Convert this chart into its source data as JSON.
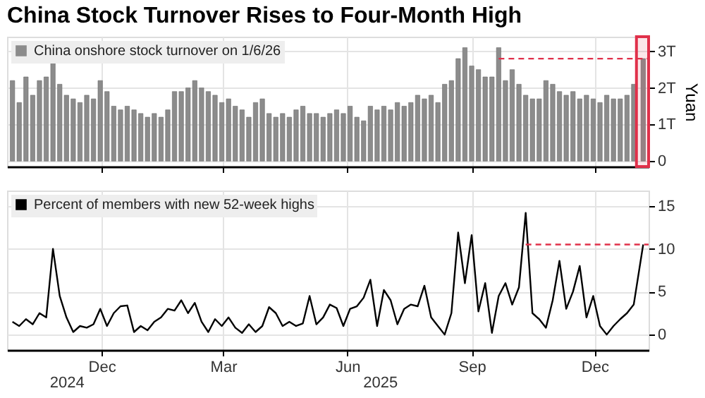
{
  "chart_data": [
    {
      "type": "bar",
      "title": "China Stock Turnover Rises to Four-Month High",
      "ylabel": "Yuan",
      "x": [
        "2024-09-26",
        "2024-10-01",
        "2024-10-06",
        "2024-10-11",
        "2024-10-16",
        "2024-10-21",
        "2024-10-26",
        "2024-10-31",
        "2024-11-05",
        "2024-11-10",
        "2024-11-15",
        "2024-11-20",
        "2024-11-25",
        "2024-11-30",
        "2024-12-05",
        "2024-12-10",
        "2024-12-15",
        "2024-12-20",
        "2024-12-25",
        "2024-12-30",
        "2025-01-04",
        "2025-01-09",
        "2025-01-14",
        "2025-01-19",
        "2025-01-24",
        "2025-01-29",
        "2025-02-03",
        "2025-02-08",
        "2025-02-13",
        "2025-02-18",
        "2025-02-23",
        "2025-02-28",
        "2025-03-05",
        "2025-03-10",
        "2025-03-15",
        "2025-03-20",
        "2025-03-25",
        "2025-03-30",
        "2025-04-04",
        "2025-04-09",
        "2025-04-14",
        "2025-04-19",
        "2025-04-24",
        "2025-04-29",
        "2025-05-04",
        "2025-05-09",
        "2025-05-14",
        "2025-05-19",
        "2025-05-24",
        "2025-05-29",
        "2025-06-03",
        "2025-06-08",
        "2025-06-13",
        "2025-06-18",
        "2025-06-23",
        "2025-06-28",
        "2025-07-03",
        "2025-07-08",
        "2025-07-13",
        "2025-07-18",
        "2025-07-23",
        "2025-07-28",
        "2025-08-02",
        "2025-08-07",
        "2025-08-12",
        "2025-08-17",
        "2025-08-22",
        "2025-08-27",
        "2025-09-01",
        "2025-09-06",
        "2025-09-11",
        "2025-09-16",
        "2025-09-21",
        "2025-09-26",
        "2025-10-01",
        "2025-10-06",
        "2025-10-11",
        "2025-10-16",
        "2025-10-21",
        "2025-10-26",
        "2025-10-31",
        "2025-11-05",
        "2025-11-10",
        "2025-11-15",
        "2025-11-20",
        "2025-11-25",
        "2025-11-30",
        "2025-12-05",
        "2025-12-10",
        "2025-12-15",
        "2025-12-20",
        "2025-12-25",
        "2025-12-30",
        "2026-01-06"
      ],
      "series": [
        {
          "name": "China onshore stock turnover on 1/6/26",
          "color": "#8c8c8c",
          "values": [
            2.2,
            1.6,
            2.3,
            1.8,
            2.2,
            2.3,
            2.68,
            2.1,
            1.8,
            1.7,
            1.6,
            1.8,
            1.7,
            2.2,
            1.9,
            1.5,
            1.4,
            1.5,
            1.4,
            1.3,
            1.2,
            1.3,
            1.2,
            1.4,
            1.9,
            1.9,
            2.0,
            2.2,
            2.0,
            1.9,
            1.8,
            1.6,
            1.7,
            1.5,
            1.4,
            1.2,
            1.6,
            1.7,
            1.3,
            1.2,
            1.3,
            1.2,
            1.4,
            1.5,
            1.3,
            1.3,
            1.2,
            1.3,
            1.4,
            1.3,
            1.5,
            1.2,
            1.1,
            1.5,
            1.4,
            1.5,
            1.4,
            1.6,
            1.5,
            1.6,
            1.8,
            1.7,
            1.8,
            1.6,
            2.1,
            2.2,
            2.8,
            3.1,
            2.6,
            2.5,
            2.3,
            2.3,
            3.1,
            2.2,
            2.5,
            2.1,
            1.8,
            1.7,
            1.7,
            2.2,
            2.1,
            1.9,
            1.8,
            1.9,
            1.7,
            1.8,
            1.7,
            1.6,
            1.8,
            1.7,
            1.7,
            1.8,
            2.1,
            2.8
          ]
        }
      ],
      "xlim": [
        "2024-09-22",
        "2026-01-10"
      ],
      "xticks": [
        {
          "value": "2024-12-01",
          "label": null
        },
        {
          "value": "2025-03-01",
          "label": null
        },
        {
          "value": "2025-06-01",
          "label": null
        },
        {
          "value": "2025-09-01",
          "label": null
        },
        {
          "value": "2025-12-01",
          "label": null
        }
      ],
      "ylim": [
        -0.15,
        3.4
      ],
      "yticks": [
        0,
        {
          "value": 1,
          "label": "1T"
        },
        {
          "value": 2,
          "label": "2T"
        },
        {
          "value": 3,
          "label": "3T"
        }
      ],
      "tick_labels": "y",
      "grid": true,
      "legend": "top left",
      "ref_lines": [
        {
          "axis": "y",
          "value": 2.8,
          "color": "#e0304a",
          "line_style": "dashed"
        }
      ],
      "bands": [
        {
          "axis": "x",
          "from": "2026-01-01",
          "to": "2026-01-10",
          "color": "#e0304a"
        }
      ]
    },
    {
      "type": "line",
      "x": [
        "2024-09-26",
        "2024-10-01",
        "2024-10-06",
        "2024-10-11",
        "2024-10-16",
        "2024-10-21",
        "2024-10-26",
        "2024-10-31",
        "2024-11-05",
        "2024-11-10",
        "2024-11-15",
        "2024-11-20",
        "2024-11-25",
        "2024-11-30",
        "2024-12-05",
        "2024-12-10",
        "2024-12-15",
        "2024-12-20",
        "2024-12-25",
        "2024-12-30",
        "2025-01-04",
        "2025-01-09",
        "2025-01-14",
        "2025-01-19",
        "2025-01-24",
        "2025-01-29",
        "2025-02-03",
        "2025-02-08",
        "2025-02-13",
        "2025-02-18",
        "2025-02-23",
        "2025-02-28",
        "2025-03-05",
        "2025-03-10",
        "2025-03-15",
        "2025-03-20",
        "2025-03-25",
        "2025-03-30",
        "2025-04-04",
        "2025-04-09",
        "2025-04-14",
        "2025-04-19",
        "2025-04-24",
        "2025-04-29",
        "2025-05-04",
        "2025-05-09",
        "2025-05-14",
        "2025-05-19",
        "2025-05-24",
        "2025-05-29",
        "2025-06-03",
        "2025-06-08",
        "2025-06-13",
        "2025-06-18",
        "2025-06-23",
        "2025-06-28",
        "2025-07-03",
        "2025-07-08",
        "2025-07-13",
        "2025-07-18",
        "2025-07-23",
        "2025-07-28",
        "2025-08-02",
        "2025-08-07",
        "2025-08-12",
        "2025-08-17",
        "2025-08-22",
        "2025-08-27",
        "2025-09-01",
        "2025-09-06",
        "2025-09-11",
        "2025-09-16",
        "2025-09-21",
        "2025-09-26",
        "2025-10-01",
        "2025-10-06",
        "2025-10-11",
        "2025-10-16",
        "2025-10-21",
        "2025-10-26",
        "2025-10-31",
        "2025-11-05",
        "2025-11-10",
        "2025-11-15",
        "2025-11-20",
        "2025-11-25",
        "2025-11-30",
        "2025-12-05",
        "2025-12-10",
        "2025-12-15",
        "2025-12-20",
        "2025-12-25",
        "2025-12-30",
        "2026-01-06"
      ],
      "series": [
        {
          "name": "Percent of members with new 52-week highs",
          "color": "#000000",
          "values": [
            1.5,
            1.0,
            1.8,
            1.2,
            2.5,
            2.0,
            10.0,
            4.5,
            2.0,
            0.3,
            1.0,
            0.8,
            1.2,
            3.0,
            1.0,
            2.5,
            3.3,
            3.4,
            0.3,
            1.0,
            0.5,
            1.5,
            2.0,
            3.0,
            2.8,
            4.0,
            2.5,
            3.7,
            1.5,
            0.3,
            1.8,
            1.0,
            2.0,
            0.8,
            0.2,
            1.2,
            0.3,
            1.0,
            3.2,
            2.5,
            1.0,
            1.5,
            1.0,
            1.3,
            4.5,
            1.2,
            2.0,
            3.5,
            3.1,
            1.0,
            3.0,
            3.3,
            4.3,
            6.4,
            1.0,
            5.2,
            4.0,
            1.2,
            3.0,
            3.5,
            3.3,
            5.7,
            2.0,
            1.0,
            0.0,
            2.5,
            11.9,
            6.0,
            11.6,
            2.7,
            6.0,
            0.2,
            4.5,
            6.0,
            3.5,
            5.5,
            14.2,
            2.5,
            1.8,
            0.8,
            4.0,
            8.6,
            3.0,
            5.0,
            8.0,
            2.0,
            4.5,
            1.0,
            0.0,
            1.0,
            1.8,
            2.5,
            3.5,
            10.5
          ]
        }
      ],
      "xlim": [
        "2024-09-22",
        "2026-01-10"
      ],
      "xticks": [
        {
          "value": "2024-12-01",
          "label": "Dec"
        },
        {
          "value": "2025-03-01",
          "label": "Mar"
        },
        {
          "value": "2025-06-01",
          "label": "Jun"
        },
        {
          "value": "2025-09-01",
          "label": "Sep"
        },
        {
          "value": "2025-12-01",
          "label": "Dec"
        }
      ],
      "x2lim": [
        "2024-09-22",
        "2026-01-10"
      ],
      "x2ticks": [
        {
          "value": "2024-11-05",
          "label": "2024"
        },
        {
          "value": "2025-06-25",
          "label": "2025"
        }
      ],
      "ylim": [
        -1.8,
        16.8
      ],
      "yticks": [
        0,
        5,
        10,
        15
      ],
      "grid": true,
      "legend": "top left",
      "ref_lines": [
        {
          "axis": "y",
          "value": 10.5,
          "color": "#e0304a",
          "line_style": "dashed"
        }
      ]
    }
  ]
}
